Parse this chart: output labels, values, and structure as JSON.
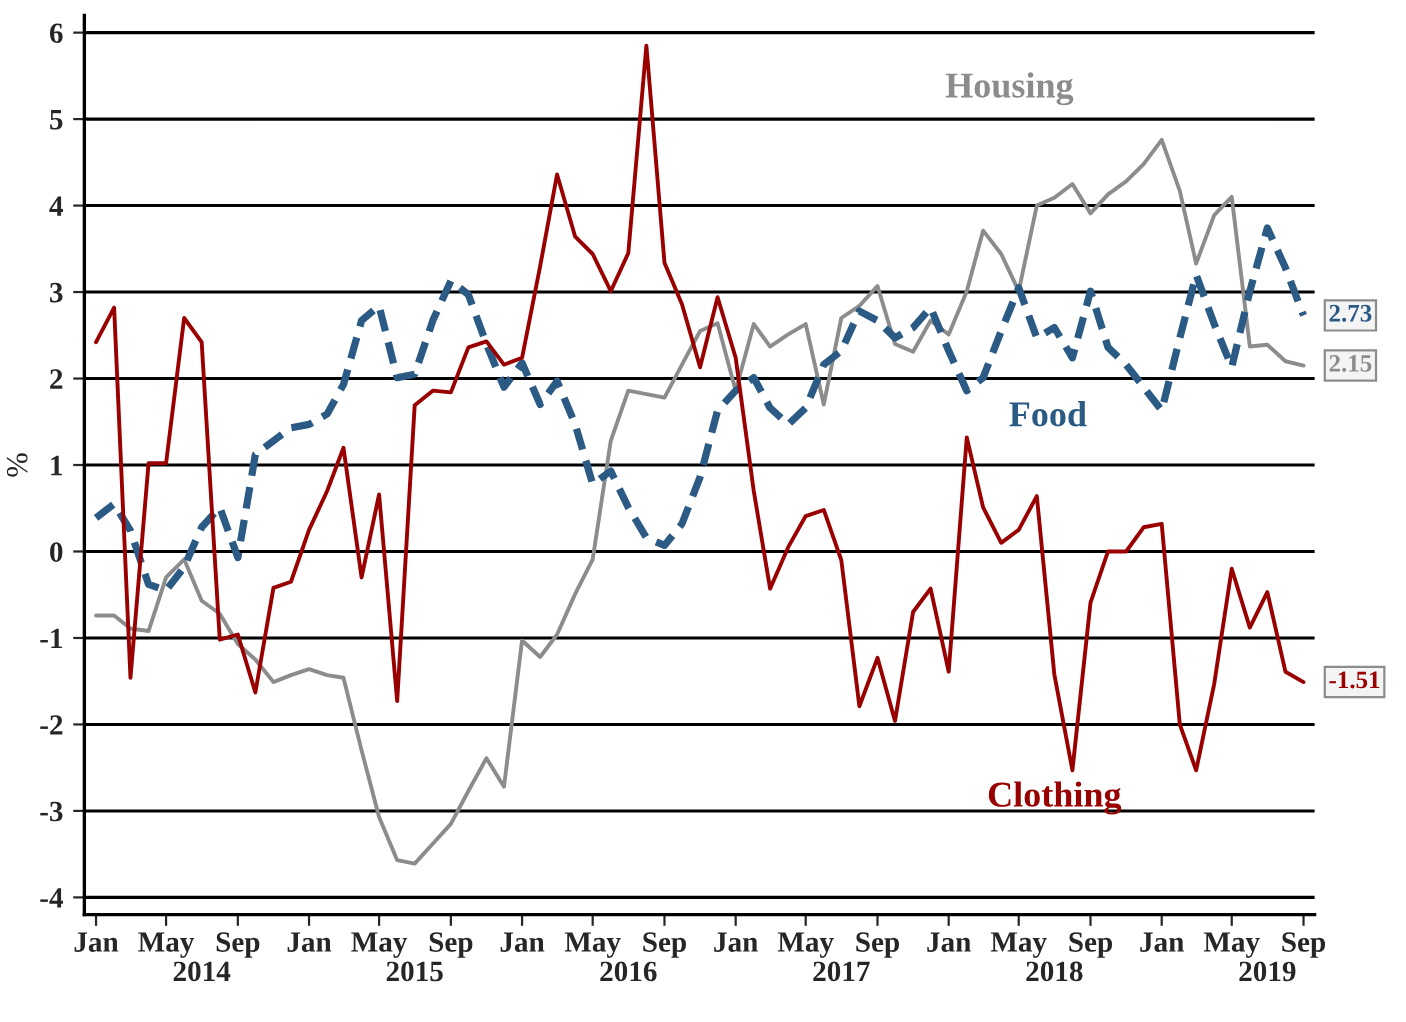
{
  "chart_data": {
    "type": "line",
    "ylabel": "%",
    "x": [
      "2014-01",
      "2014-02",
      "2014-03",
      "2014-04",
      "2014-05",
      "2014-06",
      "2014-07",
      "2014-08",
      "2014-09",
      "2014-10",
      "2014-11",
      "2014-12",
      "2015-01",
      "2015-02",
      "2015-03",
      "2015-04",
      "2015-05",
      "2015-06",
      "2015-07",
      "2015-08",
      "2015-09",
      "2015-10",
      "2015-11",
      "2015-12",
      "2016-01",
      "2016-02",
      "2016-03",
      "2016-04",
      "2016-05",
      "2016-06",
      "2016-07",
      "2016-08",
      "2016-09",
      "2016-10",
      "2016-11",
      "2016-12",
      "2017-01",
      "2017-02",
      "2017-03",
      "2017-04",
      "2017-05",
      "2017-06",
      "2017-07",
      "2017-08",
      "2017-09",
      "2017-10",
      "2017-11",
      "2017-12",
      "2018-01",
      "2018-02",
      "2018-03",
      "2018-04",
      "2018-05",
      "2018-06",
      "2018-07",
      "2018-08",
      "2018-09",
      "2018-10",
      "2018-11",
      "2018-12",
      "2019-01",
      "2019-02",
      "2019-03",
      "2019-04",
      "2019-05",
      "2019-06",
      "2019-07",
      "2019-08",
      "2019-09"
    ],
    "series": [
      {
        "name": "Housing",
        "color": "#8c8c8c",
        "line_style": "solid",
        "values": [
          -0.74,
          -0.74,
          -0.89,
          -0.92,
          -0.3,
          -0.09,
          -0.57,
          -0.72,
          -1.07,
          -1.25,
          -1.51,
          -1.43,
          -1.36,
          -1.43,
          -1.46,
          -2.3,
          -3.07,
          -3.57,
          -3.61,
          -3.38,
          -3.15,
          -2.77,
          -2.39,
          -2.72,
          -1.03,
          -1.22,
          -0.96,
          -0.49,
          -0.09,
          1.28,
          1.86,
          1.82,
          1.78,
          2.16,
          2.55,
          2.64,
          1.86,
          2.63,
          2.37,
          2.51,
          2.63,
          1.7,
          2.7,
          2.84,
          3.07,
          2.4,
          2.31,
          2.67,
          2.51,
          3.01,
          3.71,
          3.44,
          3.01,
          4.0,
          4.09,
          4.25,
          3.91,
          4.13,
          4.28,
          4.48,
          4.76,
          4.17,
          3.33,
          3.89,
          4.1,
          2.37,
          2.39,
          2.2,
          2.15
        ]
      },
      {
        "name": "Food",
        "color": "#2b5a84",
        "line_style": "dashed",
        "values": [
          0.39,
          0.55,
          0.24,
          -0.38,
          -0.45,
          -0.18,
          0.28,
          0.51,
          -0.07,
          1.12,
          1.28,
          1.43,
          1.47,
          1.59,
          1.93,
          2.67,
          2.84,
          2.01,
          2.05,
          2.67,
          3.13,
          2.97,
          2.4,
          1.9,
          2.18,
          1.7,
          1.97,
          1.47,
          0.78,
          0.93,
          0.51,
          0.16,
          0.07,
          0.32,
          0.86,
          1.63,
          1.86,
          2.01,
          1.66,
          1.47,
          1.66,
          2.16,
          2.32,
          2.78,
          2.67,
          2.47,
          2.59,
          2.82,
          2.32,
          1.86,
          2.01,
          2.55,
          3.05,
          2.47,
          2.59,
          2.24,
          3.01,
          2.36,
          2.16,
          1.9,
          1.63,
          2.47,
          3.2,
          2.63,
          2.13,
          3.01,
          3.74,
          3.28,
          2.73
        ]
      },
      {
        "name": "Clothing",
        "color": "#990000",
        "line_style": "solid",
        "values": [
          2.42,
          2.82,
          -1.46,
          1.02,
          1.02,
          2.7,
          2.42,
          -1.02,
          -0.96,
          -1.63,
          -0.42,
          -0.35,
          0.25,
          0.7,
          1.2,
          -0.3,
          0.66,
          -1.73,
          1.69,
          1.86,
          1.84,
          2.36,
          2.43,
          2.16,
          2.24,
          3.3,
          4.36,
          3.64,
          3.44,
          3.01,
          3.45,
          5.85,
          3.34,
          2.86,
          2.13,
          2.94,
          2.24,
          0.7,
          -0.43,
          0.05,
          0.41,
          0.48,
          -0.1,
          -1.79,
          -1.23,
          -1.96,
          -0.7,
          -0.43,
          -1.39,
          1.32,
          0.51,
          0.1,
          0.25,
          0.64,
          -1.42,
          -2.53,
          -0.59,
          0.0,
          0.0,
          0.28,
          0.32,
          -2.0,
          -2.53,
          -1.53,
          -0.2,
          -0.88,
          -0.47,
          -1.39,
          -1.51
        ]
      }
    ],
    "annotations": [
      {
        "text": "2.15",
        "x": "2019-09",
        "y": 2.15
      },
      {
        "text": "2.73",
        "x": "2019-09",
        "y": 2.73
      },
      {
        "text": "-1.51",
        "x": "2019-09",
        "y": -1.51
      }
    ],
    "xlim": [
      "2013-12-12",
      "2019-09-20"
    ],
    "xticks": [
      {
        "value": "2014-01",
        "label": "Jan"
      },
      {
        "value": "2014-05",
        "label": "May"
      },
      {
        "value": "2014-09",
        "label": "Sep"
      },
      {
        "value": "2015-01",
        "label": "Jan"
      },
      {
        "value": "2015-05",
        "label": "May"
      },
      {
        "value": "2015-09",
        "label": "Sep"
      },
      {
        "value": "2016-01",
        "label": "Jan"
      },
      {
        "value": "2016-05",
        "label": "May"
      },
      {
        "value": "2016-09",
        "label": "Sep"
      },
      {
        "value": "2017-01",
        "label": "Jan"
      },
      {
        "value": "2017-05",
        "label": "May"
      },
      {
        "value": "2017-09",
        "label": "Sep"
      },
      {
        "value": "2018-01",
        "label": "Jan"
      },
      {
        "value": "2018-05",
        "label": "May"
      },
      {
        "value": "2018-09",
        "label": "Sep"
      },
      {
        "value": "2019-01",
        "label": "Jan"
      },
      {
        "value": "2019-05",
        "label": "May"
      },
      {
        "value": "2019-09",
        "label": "Sep"
      }
    ],
    "x2lim": [
      "2013-12-12",
      "2019-09-20"
    ],
    "x2ticks": [
      {
        "value": "2014-07",
        "label": "2014"
      },
      {
        "value": "2015-07",
        "label": "2015"
      },
      {
        "value": "2016-07",
        "label": "2016"
      },
      {
        "value": "2017-07",
        "label": "2017"
      },
      {
        "value": "2018-07",
        "label": "2018"
      },
      {
        "value": "2019-07",
        "label": "2019"
      }
    ],
    "ylim": [
      -4.2,
      6.2
    ],
    "yticks": [
      -4,
      -3,
      -2,
      -1,
      0,
      1,
      2,
      3,
      4,
      5,
      6
    ],
    "grid": "y",
    "legend": false,
    "marker": "none"
  }
}
